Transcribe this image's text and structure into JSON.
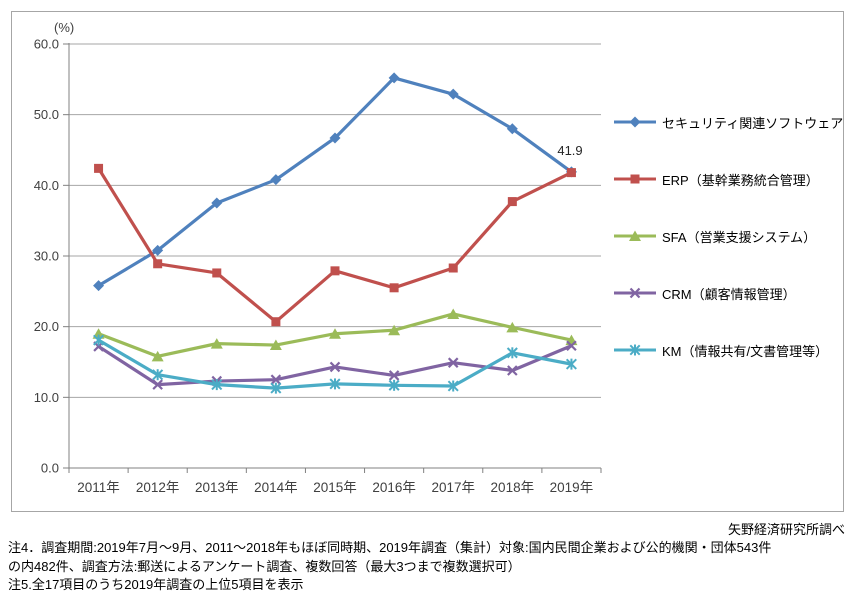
{
  "chart": {
    "unit_label": "(%)",
    "source_label": "矢野経済研究所調べ",
    "notes": [
      "注4．調査期間:2019年7月～9月、2011～2018年もほぼ同時期、2019年調査（集計）対象:国内民間企業および公的機関・団体543件",
      "の内482件、調査方法:郵送によるアンケート調査、複数回答（最大3つまで複数選択可）",
      "注5.全17項目のうち2019年調査の上位5項目を表示"
    ]
  },
  "chart_data": {
    "type": "line",
    "title": "",
    "xlabel": "",
    "ylabel": "(%)",
    "categories": [
      "2011年",
      "2012年",
      "2013年",
      "2014年",
      "2015年",
      "2016年",
      "2017年",
      "2018年",
      "2019年"
    ],
    "ylim": [
      0,
      60
    ],
    "ytick_step": 10,
    "grid": true,
    "legend_position": "right",
    "series": [
      {
        "name": "セキュリティ関連ソフトウェア",
        "color": "#4F81BD",
        "marker": "diamond",
        "values": [
          25.8,
          30.8,
          37.5,
          40.8,
          46.7,
          55.2,
          52.9,
          48.0,
          41.9
        ]
      },
      {
        "name": "ERP（基幹業務統合管理）",
        "color": "#C0504D",
        "marker": "square",
        "values": [
          42.4,
          28.9,
          27.6,
          20.7,
          27.9,
          25.5,
          28.3,
          37.7,
          41.8
        ]
      },
      {
        "name": "SFA（営業支援システム）",
        "color": "#9BBB59",
        "marker": "triangle",
        "values": [
          19.0,
          15.8,
          17.6,
          17.4,
          19.0,
          19.5,
          21.8,
          19.9,
          18.1
        ]
      },
      {
        "name": "CRM（顧客情報管理）",
        "color": "#8064A2",
        "marker": "x",
        "values": [
          17.2,
          11.8,
          12.3,
          12.5,
          14.3,
          13.1,
          14.9,
          13.8,
          17.3
        ]
      },
      {
        "name": "KM（情報共有/文書管理等）",
        "color": "#4BACC6",
        "marker": "asterisk",
        "values": [
          18.1,
          13.2,
          11.8,
          11.3,
          11.9,
          11.7,
          11.6,
          16.3,
          14.7
        ]
      }
    ],
    "data_labels": [
      {
        "series": 0,
        "index": 8,
        "text": "41.9"
      }
    ]
  }
}
